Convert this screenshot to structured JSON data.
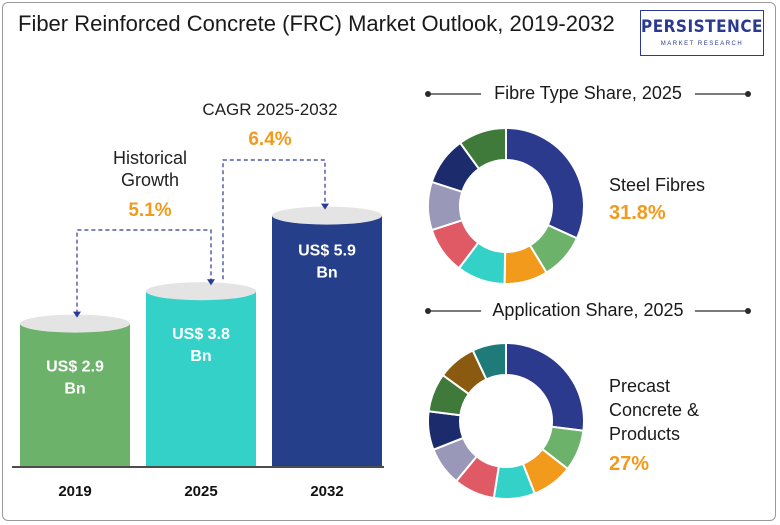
{
  "title": "Fiber Reinforced Concrete (FRC) Market Outlook, 2019-2032",
  "logo": {
    "main": "PERSISTENCE",
    "sub": "MARKET RESEARCH"
  },
  "colors": {
    "green": "#6db26b",
    "teal": "#33d1c8",
    "navy": "#263f8b",
    "orange": "#f19a1b"
  },
  "chart_data": [
    {
      "type": "bar",
      "categories": [
        "2019",
        "2025",
        "2032"
      ],
      "values": [
        2.9,
        3.8,
        5.9
      ],
      "value_labels": [
        [
          "US$ 2.9",
          "Bn"
        ],
        [
          "US$ 3.8",
          "Bn"
        ],
        [
          "US$ 5.9",
          "Bn"
        ]
      ],
      "bar_colors": [
        "#6db26b",
        "#33d1c8",
        "#263f8b"
      ],
      "annotations": [
        {
          "label_lines": [
            "Historical",
            "Growth"
          ],
          "value": "5.1%",
          "from": "2019",
          "to": "2025"
        },
        {
          "label_lines": [
            "CAGR 2025-2032"
          ],
          "value": "6.4%",
          "from": "2025",
          "to": "2032"
        }
      ]
    },
    {
      "type": "pie",
      "title": "Fibre Type  Share, 2025",
      "highlight_label": "Steel Fibres",
      "highlight_value": "31.8%",
      "slices": [
        {
          "value": 31.8,
          "color": "#2b3a8c"
        },
        {
          "value": 9.5,
          "color": "#6db26b"
        },
        {
          "value": 9.0,
          "color": "#f19a1b"
        },
        {
          "value": 10.0,
          "color": "#33d1c8"
        },
        {
          "value": 9.7,
          "color": "#e05a66"
        },
        {
          "value": 10.0,
          "color": "#9a98b8"
        },
        {
          "value": 10.0,
          "color": "#1b2b6b"
        },
        {
          "value": 10.0,
          "color": "#3f7a3a"
        }
      ]
    },
    {
      "type": "pie",
      "title": "Application Share, 2025",
      "highlight_label_lines": [
        "Precast",
        "Concrete &",
        "Products"
      ],
      "highlight_value": "27%",
      "slices": [
        {
          "value": 27.0,
          "color": "#2b3a8c"
        },
        {
          "value": 8.5,
          "color": "#6db26b"
        },
        {
          "value": 8.5,
          "color": "#f19a1b"
        },
        {
          "value": 8.5,
          "color": "#33d1c8"
        },
        {
          "value": 8.5,
          "color": "#e05a66"
        },
        {
          "value": 8.0,
          "color": "#9a98b8"
        },
        {
          "value": 8.0,
          "color": "#1b2b6b"
        },
        {
          "value": 8.0,
          "color": "#3f7a3a"
        },
        {
          "value": 8.0,
          "color": "#8a5a10"
        },
        {
          "value": 7.0,
          "color": "#1f7a7a"
        }
      ]
    }
  ]
}
